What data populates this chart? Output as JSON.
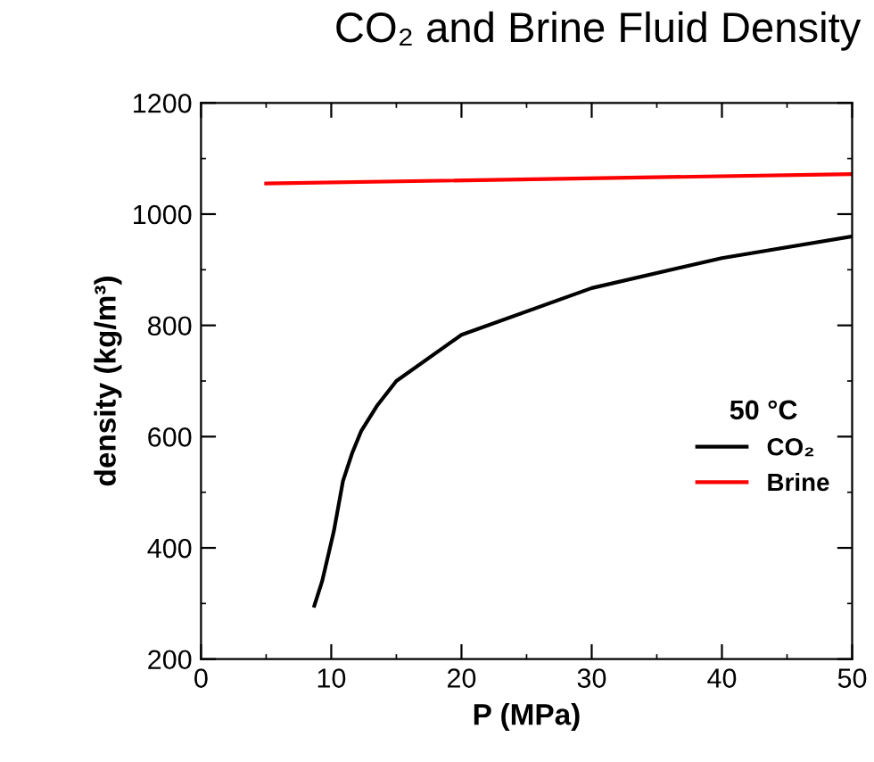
{
  "chart_data": {
    "type": "line",
    "title": "CO₂ and Brine Fluid Density",
    "xlabel": "P (MPa)",
    "ylabel": "density (kg/m³)",
    "legend_title": "50 °C",
    "legend": "right",
    "xlim": [
      0,
      50
    ],
    "xticks": [
      0,
      10,
      20,
      30,
      40,
      50
    ],
    "ylim": [
      200,
      1200
    ],
    "yticks": [
      200,
      400,
      600,
      800,
      1000,
      1200
    ],
    "grid": false,
    "series": [
      {
        "name": "CO₂",
        "color": "#000000",
        "x": [
          8.7,
          9.3,
          10.2,
          10.9,
          11.6,
          12.3,
          13.5,
          15,
          20,
          30,
          40,
          50
        ],
        "values": [
          296,
          340,
          430,
          520,
          570,
          610,
          655,
          700,
          783,
          867,
          921,
          960
        ]
      },
      {
        "name": "Brine",
        "color": "#ff0000",
        "x": [
          5,
          50
        ],
        "values": [
          1055,
          1072
        ]
      }
    ]
  }
}
